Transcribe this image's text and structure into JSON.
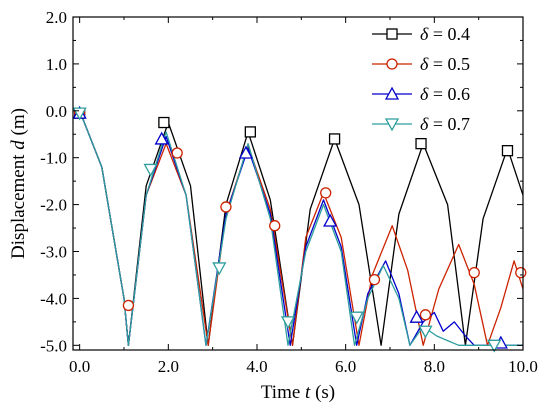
{
  "chart_data": {
    "type": "line",
    "xlabel": "Time",
    "xlabel_var": "t",
    "xlabel_unit": "(s)",
    "ylabel": "Displacement",
    "ylabel_var": "d",
    "ylabel_unit": "(m)",
    "xlim": [
      -0.15,
      10.0
    ],
    "ylim": [
      -5.1,
      2.0
    ],
    "xticks": [
      0.0,
      2.0,
      4.0,
      6.0,
      8.0,
      10.0
    ],
    "xtick_labels": [
      "0.0",
      "2.0",
      "4.0",
      "6.0",
      "8.0",
      "10.0"
    ],
    "yticks": [
      2.0,
      1.0,
      0.0,
      -1.0,
      -2.0,
      -3.0,
      -4.0,
      -5.0
    ],
    "ytick_labels": [
      "2.0",
      "1.0",
      "0.0",
      "-1.0",
      "-2.0",
      "-3.0",
      "-4.0",
      "-5.0"
    ],
    "grid": false,
    "legend_position": "top-right",
    "series": [
      {
        "name": "δ = 0.4",
        "legend_symbol": "δ",
        "legend_value": "= 0.4",
        "color": "#000000",
        "marker": "square",
        "x": [
          0.0,
          0.5,
          1.0,
          1.1,
          1.5,
          2.0,
          2.5,
          2.9,
          3.3,
          3.8,
          4.3,
          4.8,
          5.2,
          5.75,
          6.3,
          6.8,
          7.2,
          7.75,
          8.3,
          8.7,
          9.1,
          9.65,
          10.0
        ],
        "y": [
          0.0,
          -1.2,
          -4.0,
          -5.0,
          -1.6,
          -0.25,
          -1.6,
          -5.0,
          -2.0,
          -0.45,
          -1.9,
          -5.0,
          -2.1,
          -0.6,
          -2.0,
          -5.0,
          -2.2,
          -0.7,
          -2.0,
          -5.0,
          -2.3,
          -0.8,
          -1.8
        ],
        "marker_x": [
          0.0,
          1.9,
          3.85,
          5.75,
          7.7,
          9.65
        ],
        "marker_y": [
          -0.05,
          -0.25,
          -0.45,
          -0.6,
          -0.7,
          -0.85
        ]
      },
      {
        "name": "δ = 0.5",
        "legend_symbol": "δ",
        "legend_value": "= 0.5",
        "color": "#cc2200",
        "marker": "circle",
        "x": [
          0.0,
          0.5,
          1.0,
          1.1,
          1.5,
          1.95,
          2.4,
          2.9,
          3.3,
          3.8,
          4.3,
          4.8,
          5.1,
          5.5,
          5.9,
          6.3,
          6.6,
          7.05,
          7.4,
          7.75,
          8.1,
          8.55,
          8.9,
          9.2,
          9.5,
          9.8,
          10.0
        ],
        "y": [
          0.0,
          -1.2,
          -4.0,
          -5.0,
          -1.8,
          -0.7,
          -1.8,
          -5.0,
          -2.2,
          -0.75,
          -2.1,
          -5.0,
          -2.7,
          -1.75,
          -2.7,
          -5.0,
          -3.5,
          -2.45,
          -3.4,
          -5.0,
          -3.8,
          -2.85,
          -3.7,
          -5.0,
          -4.2,
          -3.2,
          -3.8
        ],
        "marker_x": [
          0.0,
          1.1,
          2.2,
          3.3,
          4.4,
          5.55,
          6.65,
          7.8,
          8.9,
          9.95
        ],
        "marker_y": [
          -0.05,
          -4.15,
          -0.9,
          -2.05,
          -2.45,
          -1.75,
          -3.6,
          -4.35,
          -3.45,
          -3.45
        ]
      },
      {
        "name": "δ = 0.6",
        "legend_symbol": "δ",
        "legend_value": "= 0.6",
        "color": "#0000cc",
        "marker": "triangle-up",
        "x": [
          0.0,
          0.5,
          1.0,
          1.1,
          1.5,
          1.95,
          2.4,
          2.85,
          3.3,
          3.8,
          4.3,
          4.75,
          5.1,
          5.5,
          5.9,
          6.25,
          6.5,
          6.9,
          7.2,
          7.45,
          7.75,
          8.0,
          8.2,
          8.45,
          8.7,
          8.9,
          10.0
        ],
        "y": [
          0.0,
          -1.2,
          -4.0,
          -5.0,
          -1.8,
          -0.55,
          -1.8,
          -5.0,
          -2.2,
          -0.8,
          -2.2,
          -5.0,
          -2.9,
          -1.9,
          -2.9,
          -5.0,
          -3.9,
          -3.2,
          -3.9,
          -5.0,
          -4.5,
          -4.3,
          -4.7,
          -4.5,
          -4.8,
          -5.0,
          -5.0
        ],
        "marker_x": [
          0.0,
          1.85,
          3.75,
          5.65,
          7.6,
          9.5
        ],
        "marker_y": [
          -0.05,
          -0.6,
          -0.9,
          -2.35,
          -4.4,
          -4.95
        ]
      },
      {
        "name": "δ = 0.7",
        "legend_symbol": "δ",
        "legend_value": "= 0.7",
        "color": "#2e9e9e",
        "marker": "triangle-down",
        "x": [
          0.0,
          0.5,
          1.0,
          1.1,
          1.5,
          1.95,
          2.4,
          2.85,
          3.3,
          3.8,
          4.3,
          4.7,
          5.1,
          5.5,
          5.9,
          6.2,
          6.5,
          6.85,
          7.2,
          7.45,
          7.75,
          8.05,
          8.3,
          8.55,
          10.0
        ],
        "y": [
          0.0,
          -1.2,
          -4.0,
          -5.0,
          -1.8,
          -0.45,
          -1.8,
          -5.0,
          -2.3,
          -0.7,
          -2.3,
          -5.0,
          -3.0,
          -2.0,
          -3.0,
          -5.0,
          -4.0,
          -3.3,
          -4.0,
          -5.0,
          -4.6,
          -4.8,
          -4.9,
          -5.0,
          -5.0
        ],
        "marker_x": [
          0.0,
          1.6,
          3.15,
          4.7,
          6.25,
          7.8,
          9.35
        ],
        "marker_y": [
          -0.05,
          -1.25,
          -3.35,
          -4.5,
          -4.4,
          -4.7,
          -5.0
        ]
      }
    ]
  }
}
